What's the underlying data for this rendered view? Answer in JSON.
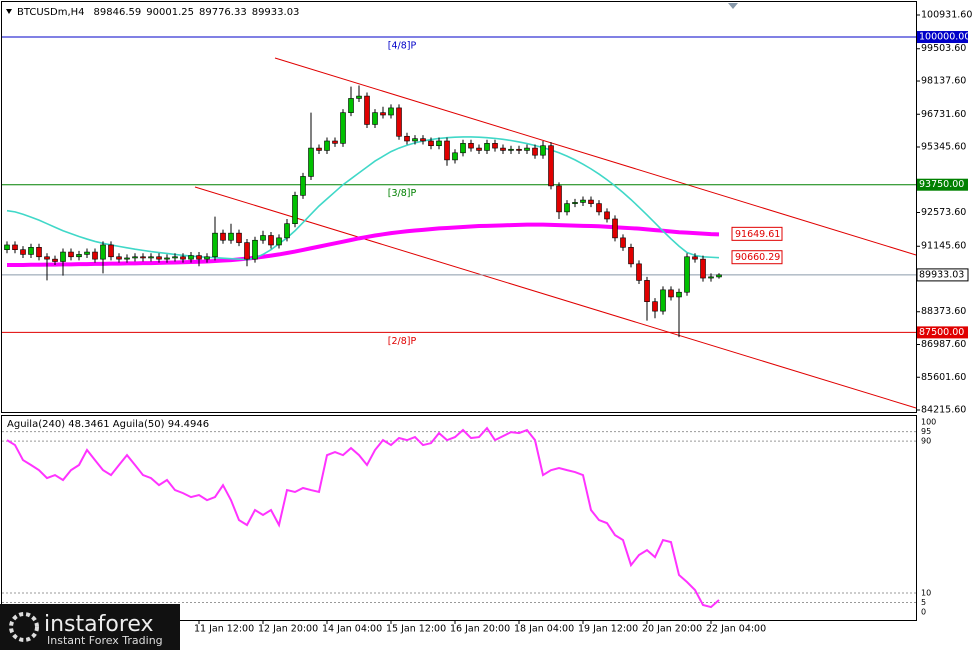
{
  "chart_data": [
    {
      "type": "candlestick",
      "symbol": "BTCUSDm,H4",
      "categories": [
        null,
        null,
        null,
        null,
        null,
        null,
        null,
        null,
        null,
        null,
        null,
        null,
        null,
        null,
        null,
        null,
        null,
        null,
        null,
        null,
        null,
        null,
        null,
        null,
        "11 Jan 12:00",
        null,
        null,
        null,
        null,
        null,
        null,
        null,
        "12 Jan 20:00",
        null,
        null,
        null,
        null,
        null,
        null,
        null,
        "14 Jan 04:00",
        null,
        null,
        null,
        null,
        null,
        null,
        null,
        "15 Jan 12:00",
        null,
        null,
        null,
        null,
        null,
        null,
        null,
        "16 Jan 20:00",
        null,
        null,
        null,
        null,
        null,
        null,
        null,
        "18 Jan 04:00",
        null,
        null,
        null,
        null,
        null,
        null,
        null,
        "19 Jan 12:00",
        null,
        null,
        null,
        null,
        null,
        null,
        null,
        "20 Jan 20:00",
        null,
        null,
        null,
        null,
        null,
        null,
        null,
        "22 Jan 04:00",
        null
      ],
      "open": [
        91000,
        91200,
        91000,
        90800,
        91100,
        90700,
        90600,
        90500,
        90900,
        90700,
        90800,
        90900,
        90600,
        91200,
        90700,
        90600,
        90650,
        90700,
        90650,
        90700,
        90600,
        90650,
        90700,
        90600,
        90750,
        90600,
        90700,
        91700,
        91400,
        91700,
        91300,
        90600,
        91400,
        91600,
        91200,
        91500,
        92100,
        93300,
        94100,
        95300,
        95200,
        95600,
        95500,
        96800,
        97400,
        97500,
        96300,
        96800,
        96700,
        97000,
        95800,
        95600,
        95700,
        95600,
        95400,
        95600,
        94800,
        95100,
        95500,
        95300,
        95200,
        95500,
        95300,
        95200,
        95250,
        95200,
        95300,
        95000,
        95400,
        93700,
        92600,
        92950,
        93000,
        93100,
        92950,
        92600,
        92300,
        91500,
        91100,
        90400,
        89700,
        88800,
        88400,
        89300,
        89000,
        89200,
        90700,
        90600,
        89800,
        89846.59
      ],
      "high": [
        91350,
        91350,
        91150,
        91250,
        91250,
        90850,
        90750,
        91050,
        91050,
        90950,
        91050,
        91050,
        91350,
        91350,
        90850,
        90800,
        90850,
        90850,
        90850,
        90850,
        90800,
        90850,
        90850,
        90900,
        90900,
        90850,
        92400,
        91850,
        92100,
        91850,
        91450,
        91550,
        91800,
        91750,
        91650,
        92300,
        93450,
        94250,
        96800,
        95450,
        95750,
        95750,
        96950,
        97900,
        97950,
        97650,
        96950,
        97050,
        97150,
        97150,
        95950,
        95850,
        95850,
        95750,
        95750,
        95750,
        95250,
        95650,
        95650,
        95450,
        95650,
        95650,
        95450,
        95400,
        95400,
        95450,
        95450,
        95600,
        95550,
        93850,
        93100,
        93150,
        93250,
        93250,
        93100,
        92750,
        92450,
        91650,
        91250,
        90550,
        89850,
        88950,
        89450,
        89450,
        89350,
        90850,
        90850,
        90750,
        90000,
        90001.25
      ],
      "low": [
        90850,
        90850,
        90650,
        90650,
        90550,
        89700,
        90350,
        89900,
        90550,
        90550,
        90650,
        90450,
        90000,
        90550,
        90450,
        90450,
        90500,
        90500,
        90500,
        90450,
        90450,
        90500,
        90450,
        90450,
        90300,
        90450,
        90550,
        91250,
        91250,
        91150,
        90300,
        90450,
        91250,
        91050,
        91050,
        91350,
        91950,
        93150,
        93950,
        95050,
        95050,
        95350,
        95350,
        96650,
        97250,
        96150,
        96150,
        96550,
        96550,
        95650,
        95450,
        95450,
        95450,
        95250,
        95250,
        94550,
        94650,
        94950,
        95150,
        95050,
        95050,
        95150,
        95050,
        95050,
        95050,
        95050,
        94850,
        94850,
        93550,
        92300,
        92450,
        92800,
        92850,
        92800,
        92450,
        92150,
        91350,
        90950,
        90250,
        89550,
        88000,
        88100,
        88250,
        88850,
        87300,
        89050,
        90450,
        89650,
        89650,
        89776.33
      ],
      "close": [
        91200,
        91000,
        90800,
        91100,
        90700,
        90600,
        90500,
        90900,
        90700,
        90800,
        90900,
        90600,
        91200,
        90700,
        90600,
        90650,
        90700,
        90650,
        90700,
        90600,
        90650,
        90700,
        90600,
        90750,
        90600,
        90700,
        91700,
        91400,
        91700,
        91300,
        90600,
        91400,
        91600,
        91200,
        91500,
        92100,
        93300,
        94100,
        95300,
        95200,
        95600,
        95500,
        96800,
        97400,
        97500,
        96300,
        96800,
        96700,
        97000,
        95800,
        95600,
        95700,
        95600,
        95400,
        95600,
        94800,
        95100,
        95500,
        95300,
        95200,
        95500,
        95300,
        95200,
        95250,
        95200,
        95300,
        95000,
        95400,
        93700,
        92600,
        92950,
        93000,
        93100,
        92950,
        92600,
        92300,
        91500,
        91100,
        90400,
        89700,
        88800,
        88400,
        89300,
        89000,
        89200,
        90700,
        90600,
        89800,
        89850,
        89933.03
      ],
      "up_color": "#00c000",
      "down_color": "#e00000",
      "lines": [
        {
          "color": "#ff00ff",
          "values": [
            90350,
            90350,
            90350,
            90360,
            90360,
            90370,
            90370,
            90380,
            90380,
            90390,
            90390,
            90400,
            90400,
            90410,
            90410,
            90420,
            90420,
            90430,
            90430,
            90440,
            90450,
            90460,
            90470,
            90480,
            90490,
            90500,
            90520,
            90540,
            90560,
            90590,
            90620,
            90660,
            90700,
            90750,
            90800,
            90860,
            90920,
            90990,
            91060,
            91130,
            91200,
            91270,
            91340,
            91410,
            91480,
            91540,
            91600,
            91650,
            91700,
            91740,
            91780,
            91810,
            91840,
            91870,
            91900,
            91920,
            91940,
            91960,
            91980,
            92000,
            92010,
            92020,
            92030,
            92040,
            92050,
            92060,
            92060,
            92060,
            92050,
            92040,
            92030,
            92020,
            92010,
            92000,
            91990,
            91970,
            91950,
            91930,
            91910,
            91890,
            91860,
            91830,
            91800,
            91770,
            91740,
            91720,
            91700,
            91680,
            91660,
            91649.61
          ]
        },
        {
          "color": "#40d8c8",
          "values": [
            92650,
            92600,
            92500,
            92380,
            92250,
            92100,
            91950,
            91800,
            91680,
            91560,
            91450,
            91350,
            91270,
            91200,
            91140,
            91080,
            91020,
            90970,
            90920,
            90880,
            90840,
            90800,
            90760,
            90730,
            90700,
            90680,
            90660,
            90640,
            90620,
            90600,
            90580,
            90650,
            90800,
            91000,
            91250,
            91500,
            91800,
            92150,
            92500,
            92850,
            93150,
            93450,
            93750,
            94000,
            94250,
            94500,
            94750,
            94950,
            95150,
            95300,
            95420,
            95520,
            95600,
            95660,
            95710,
            95740,
            95760,
            95770,
            95770,
            95760,
            95740,
            95710,
            95670,
            95620,
            95560,
            95490,
            95410,
            95320,
            95220,
            95100,
            94960,
            94800,
            94620,
            94420,
            94200,
            93960,
            93700,
            93420,
            93120,
            92800,
            92470,
            92130,
            91790,
            91460,
            91150,
            90880,
            90760,
            90700,
            90680,
            90660.29
          ]
        }
      ],
      "levels": [
        {
          "value": 100000,
          "value_label": "100000.00",
          "name": "[4/8]P",
          "color": "#0000c8"
        },
        {
          "value": 93750,
          "value_label": "93750.00",
          "name": "[3/8]P",
          "color": "#008000"
        },
        {
          "value": 87500,
          "value_label": "87500.00",
          "name": "[2/8]P",
          "color": "#e00000"
        }
      ],
      "ylim": [
        84131,
        101482
      ],
      "yticks": [
        {
          "value": 100931.6,
          "label": "100931.60"
        },
        {
          "value": 99503.6,
          "label": "99503.60"
        },
        {
          "value": 98137.6,
          "label": "98137.60"
        },
        {
          "value": 96731.6,
          "label": "96731.60"
        },
        {
          "value": 95345.6,
          "label": "95345.60"
        },
        {
          "value": 92573.6,
          "label": "92573.60"
        },
        {
          "value": 91145.6,
          "label": "91145.60"
        },
        {
          "value": 88373.6,
          "label": "88373.60"
        },
        {
          "value": 86987.6,
          "label": "86987.60"
        },
        {
          "value": 85601.6,
          "label": "85601.60"
        },
        {
          "value": 84215.6,
          "label": "84215.60"
        }
      ]
    },
    {
      "type": "line",
      "title": "Aguila(240) 48.3461 Aguila(50) 94.4946",
      "color": "#ff33ff",
      "values": [
        90.5,
        87.9,
        80,
        77.4,
        74.7,
        70.5,
        72.1,
        69.5,
        74.7,
        77.4,
        85.3,
        80,
        74.7,
        72.1,
        77.4,
        82.6,
        77.4,
        72.1,
        70.5,
        66.8,
        69.5,
        64.2,
        62.6,
        60.5,
        61.6,
        58.9,
        60.5,
        66.8,
        58.9,
        48.4,
        45.8,
        53.7,
        51.1,
        53.7,
        45.8,
        64.2,
        63.2,
        65.3,
        64.2,
        63.2,
        82.6,
        84.2,
        82.6,
        86.3,
        82.6,
        77.4,
        85.3,
        90.5,
        87.9,
        91.6,
        90.5,
        92.1,
        87.9,
        88.9,
        94.2,
        90.5,
        92.1,
        95.8,
        91.6,
        92.1,
        96.8,
        90.5,
        92.6,
        94.7,
        94.2,
        95.8,
        90.5,
        72.1,
        74.7,
        75.8,
        74.7,
        73.7,
        72.1,
        53.7,
        48.4,
        46.8,
        40.5,
        37.9,
        24.7,
        30,
        32.6,
        28.9,
        37.9,
        36.8,
        19.5,
        15.8,
        11.6,
        3.7,
        2.6,
        6.3
      ],
      "ylim": [
        -4.2,
        103.2
      ],
      "yticks": [
        100,
        95,
        90,
        10,
        5,
        0
      ]
    }
  ],
  "watermark": {
    "name": "instaforex",
    "tagline": "Instant Forex Trading"
  }
}
